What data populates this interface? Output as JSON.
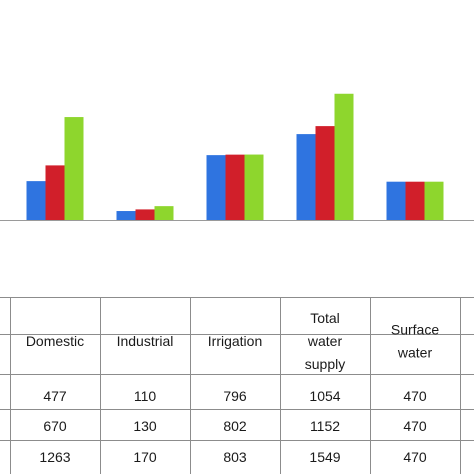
{
  "chart_data": {
    "type": "bar",
    "categories": [
      "Domestic",
      "Industrial",
      "Irrigation",
      "Total water supply",
      "Surface water"
    ],
    "category_labels": [
      [
        "Domestic"
      ],
      [
        "Industrial"
      ],
      [
        "Irrigation"
      ],
      [
        "Total",
        "water",
        "supply"
      ],
      [
        "Surface",
        "water"
      ]
    ],
    "series": [
      {
        "values": [
          477,
          110,
          796,
          1054,
          470
        ],
        "color": "#2f74e0"
      },
      {
        "values": [
          670,
          130,
          802,
          1152,
          470
        ],
        "color": "#d11f2a"
      },
      {
        "values": [
          1263,
          170,
          803,
          1549,
          470
        ],
        "color": "#8ed62d"
      }
    ],
    "ylim": [
      0,
      1600
    ],
    "grid": false
  }
}
